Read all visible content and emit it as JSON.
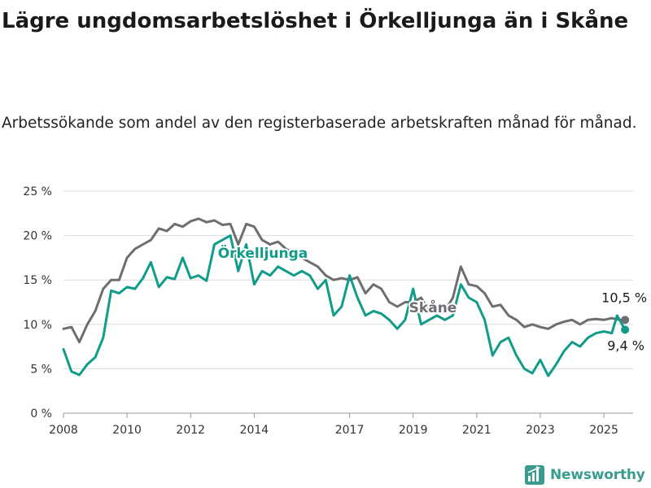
{
  "title": "Lägre ungdomsarbetslöshet i Örkelljunga än i Skåne",
  "subtitle": "Arbetssökande som andel av den registerbaserade arbetskraften månad för månad.",
  "brand": "Newsworthy",
  "colors": {
    "Örkelljunga": "#119c8a",
    "Skåne": "#6e6d72",
    "grid": "#dcdcdc",
    "text": "#1a1a1a"
  },
  "chart_data": {
    "type": "line",
    "title": "Lägre ungdomsarbetslöshet i Örkelljunga än i Skåne",
    "subtitle": "Arbetssökande som andel av den registerbaserade arbetskraften månad för månad.",
    "xlabel": "",
    "ylabel": "",
    "y_ticks": [
      0,
      5,
      10,
      15,
      20,
      25
    ],
    "y_tick_labels": [
      "0 %",
      "5 %",
      "10 %",
      "15 %",
      "20 %",
      "25 %"
    ],
    "x_ticks": [
      "2008",
      "2010",
      "2012",
      "2014",
      "2017",
      "2019",
      "2021",
      "2023",
      "2025"
    ],
    "xlim": [
      "2008-01",
      "2025-12"
    ],
    "ylim": [
      0,
      25
    ],
    "grid": true,
    "legend": "inline labels",
    "series": [
      {
        "name": "Skåne",
        "end_label": "10,5 %",
        "points": [
          [
            "2008-01",
            9.5
          ],
          [
            "2008-04",
            9.7
          ],
          [
            "2008-07",
            8.0
          ],
          [
            "2008-10",
            10.0
          ],
          [
            "2009-01",
            11.5
          ],
          [
            "2009-04",
            14.0
          ],
          [
            "2009-07",
            15.0
          ],
          [
            "2009-10",
            15.0
          ],
          [
            "2010-01",
            17.5
          ],
          [
            "2010-04",
            18.5
          ],
          [
            "2010-07",
            19.0
          ],
          [
            "2010-10",
            19.5
          ],
          [
            "2011-01",
            20.8
          ],
          [
            "2011-04",
            20.5
          ],
          [
            "2011-07",
            21.3
          ],
          [
            "2011-10",
            21.0
          ],
          [
            "2012-01",
            21.6
          ],
          [
            "2012-04",
            21.9
          ],
          [
            "2012-07",
            21.5
          ],
          [
            "2012-10",
            21.7
          ],
          [
            "2013-01",
            21.2
          ],
          [
            "2013-04",
            21.3
          ],
          [
            "2013-07",
            19.0
          ],
          [
            "2013-10",
            21.3
          ],
          [
            "2014-01",
            21.0
          ],
          [
            "2014-04",
            19.5
          ],
          [
            "2014-07",
            19.0
          ],
          [
            "2014-10",
            19.3
          ],
          [
            "2015-01",
            18.5
          ],
          [
            "2015-04",
            18.0
          ],
          [
            "2015-07",
            17.5
          ],
          [
            "2015-10",
            17.0
          ],
          [
            "2016-01",
            16.5
          ],
          [
            "2016-04",
            15.5
          ],
          [
            "2016-07",
            15.0
          ],
          [
            "2016-10",
            15.2
          ],
          [
            "2017-01",
            15.0
          ],
          [
            "2017-04",
            15.3
          ],
          [
            "2017-07",
            13.5
          ],
          [
            "2017-10",
            14.5
          ],
          [
            "2018-01",
            14.0
          ],
          [
            "2018-04",
            12.5
          ],
          [
            "2018-07",
            12.0
          ],
          [
            "2018-10",
            12.5
          ],
          [
            "2019-01",
            12.5
          ],
          [
            "2019-04",
            13.0
          ],
          [
            "2019-07",
            11.5
          ],
          [
            "2019-10",
            12.0
          ],
          [
            "2020-01",
            11.5
          ],
          [
            "2020-04",
            13.0
          ],
          [
            "2020-07",
            16.5
          ],
          [
            "2020-10",
            14.5
          ],
          [
            "2021-01",
            14.3
          ],
          [
            "2021-04",
            13.5
          ],
          [
            "2021-07",
            12.0
          ],
          [
            "2021-10",
            12.2
          ],
          [
            "2022-01",
            11.0
          ],
          [
            "2022-04",
            10.5
          ],
          [
            "2022-07",
            9.7
          ],
          [
            "2022-10",
            10.0
          ],
          [
            "2023-01",
            9.7
          ],
          [
            "2023-04",
            9.5
          ],
          [
            "2023-07",
            10.0
          ],
          [
            "2023-10",
            10.3
          ],
          [
            "2024-01",
            10.5
          ],
          [
            "2024-04",
            10.0
          ],
          [
            "2024-07",
            10.5
          ],
          [
            "2024-10",
            10.6
          ],
          [
            "2025-01",
            10.5
          ],
          [
            "2025-04",
            10.7
          ],
          [
            "2025-07",
            10.5
          ],
          [
            "2025-09",
            10.5
          ]
        ]
      },
      {
        "name": "Örkelljunga",
        "end_label": "9,4 %",
        "points": [
          [
            "2008-01",
            7.2
          ],
          [
            "2008-04",
            4.7
          ],
          [
            "2008-07",
            4.3
          ],
          [
            "2008-10",
            5.5
          ],
          [
            "2009-01",
            6.3
          ],
          [
            "2009-04",
            8.5
          ],
          [
            "2009-07",
            13.8
          ],
          [
            "2009-10",
            13.5
          ],
          [
            "2010-01",
            14.2
          ],
          [
            "2010-04",
            14.0
          ],
          [
            "2010-07",
            15.2
          ],
          [
            "2010-10",
            17.0
          ],
          [
            "2011-01",
            14.2
          ],
          [
            "2011-04",
            15.3
          ],
          [
            "2011-07",
            15.1
          ],
          [
            "2011-10",
            17.5
          ],
          [
            "2012-01",
            15.2
          ],
          [
            "2012-04",
            15.5
          ],
          [
            "2012-07",
            14.9
          ],
          [
            "2012-10",
            19.0
          ],
          [
            "2013-01",
            19.5
          ],
          [
            "2013-04",
            20.0
          ],
          [
            "2013-07",
            16.0
          ],
          [
            "2013-10",
            19.0
          ],
          [
            "2014-01",
            14.5
          ],
          [
            "2014-04",
            16.0
          ],
          [
            "2014-07",
            15.5
          ],
          [
            "2014-10",
            16.5
          ],
          [
            "2015-01",
            16.0
          ],
          [
            "2015-04",
            15.5
          ],
          [
            "2015-07",
            16.0
          ],
          [
            "2015-10",
            15.5
          ],
          [
            "2016-01",
            14.0
          ],
          [
            "2016-04",
            15.0
          ],
          [
            "2016-07",
            11.0
          ],
          [
            "2016-10",
            12.0
          ],
          [
            "2017-01",
            15.5
          ],
          [
            "2017-04",
            13.0
          ],
          [
            "2017-07",
            11.0
          ],
          [
            "2017-10",
            11.5
          ],
          [
            "2018-01",
            11.2
          ],
          [
            "2018-04",
            10.5
          ],
          [
            "2018-07",
            9.5
          ],
          [
            "2018-10",
            10.5
          ],
          [
            "2019-01",
            14.0
          ],
          [
            "2019-04",
            10.0
          ],
          [
            "2019-07",
            10.5
          ],
          [
            "2019-10",
            11.0
          ],
          [
            "2020-01",
            10.5
          ],
          [
            "2020-04",
            11.0
          ],
          [
            "2020-07",
            14.5
          ],
          [
            "2020-10",
            13.0
          ],
          [
            "2021-01",
            12.5
          ],
          [
            "2021-04",
            10.5
          ],
          [
            "2021-07",
            6.5
          ],
          [
            "2021-10",
            8.0
          ],
          [
            "2022-01",
            8.5
          ],
          [
            "2022-04",
            6.5
          ],
          [
            "2022-07",
            5.0
          ],
          [
            "2022-10",
            4.5
          ],
          [
            "2023-01",
            6.0
          ],
          [
            "2023-04",
            4.2
          ],
          [
            "2023-07",
            5.5
          ],
          [
            "2023-10",
            7.0
          ],
          [
            "2024-01",
            8.0
          ],
          [
            "2024-04",
            7.5
          ],
          [
            "2024-07",
            8.5
          ],
          [
            "2024-10",
            9.0
          ],
          [
            "2025-01",
            9.2
          ],
          [
            "2025-04",
            9.0
          ],
          [
            "2025-06",
            11.0
          ],
          [
            "2025-09",
            9.4
          ]
        ]
      }
    ]
  }
}
